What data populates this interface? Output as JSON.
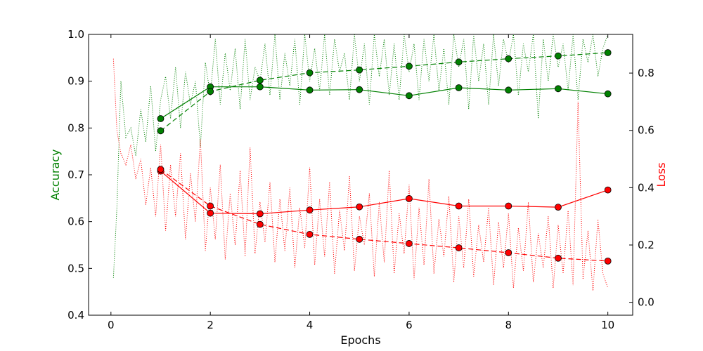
{
  "chart_data": {
    "type": "line",
    "title": "",
    "xlabel": "Epochs",
    "ylabel_left": "Accuracy",
    "ylabel_right": "Loss",
    "xlim": [
      -0.45,
      10.5
    ],
    "ylim_left": [
      0.4,
      1.0
    ],
    "ylim_right": [
      -0.045,
      0.935
    ],
    "x_ticks": [
      0,
      2,
      4,
      6,
      8,
      10
    ],
    "y_left_ticks": [
      0.4,
      0.5,
      0.6,
      0.7,
      0.8,
      0.9,
      1.0
    ],
    "y_right_ticks": [
      0.0,
      0.2,
      0.4,
      0.6,
      0.8
    ],
    "grid": false,
    "legend": "none",
    "colors": {
      "accuracy": "#008000",
      "loss": "#ff0000",
      "axis": "#000000",
      "background": "#ffffff"
    },
    "series": [
      {
        "axis": "left",
        "color": "#008000",
        "line": "solid",
        "marker": "circle",
        "x": [
          1,
          2,
          3,
          4,
          5,
          6,
          7,
          8,
          9,
          10
        ],
        "values": [
          0.82,
          0.888,
          0.888,
          0.881,
          0.882,
          0.869,
          0.886,
          0.881,
          0.884,
          0.873
        ]
      },
      {
        "axis": "left",
        "color": "#008000",
        "line": "dashed",
        "marker": "circle",
        "x": [
          1,
          2,
          3,
          4,
          5,
          6,
          7,
          8,
          9,
          10
        ],
        "values": [
          0.794,
          0.878,
          0.902,
          0.918,
          0.924,
          0.932,
          0.941,
          0.948,
          0.954,
          0.961
        ]
      },
      {
        "axis": "right",
        "color": "#ff0000",
        "line": "solid",
        "marker": "circle",
        "x": [
          1,
          2,
          3,
          4,
          5,
          6,
          7,
          8,
          9,
          10
        ],
        "values": [
          0.458,
          0.311,
          0.309,
          0.322,
          0.333,
          0.362,
          0.336,
          0.336,
          0.332,
          0.392
        ]
      },
      {
        "axis": "right",
        "color": "#ff0000",
        "line": "dashed",
        "marker": "circle",
        "x": [
          1,
          2,
          3,
          4,
          5,
          6,
          7,
          8,
          9,
          10
        ],
        "values": [
          0.464,
          0.336,
          0.272,
          0.237,
          0.22,
          0.205,
          0.19,
          0.173,
          0.154,
          0.144
        ]
      },
      {
        "axis": "left",
        "color": "#008000",
        "line": "dotted",
        "marker": "none",
        "x": [
          0.05,
          0.12,
          0.2,
          0.3,
          0.4,
          0.5,
          0.6,
          0.7,
          0.8,
          0.9,
          1.0,
          1.1,
          1.2,
          1.3,
          1.4,
          1.5,
          1.6,
          1.7,
          1.8,
          1.9,
          2.0,
          2.1,
          2.2,
          2.3,
          2.4,
          2.5,
          2.6,
          2.7,
          2.8,
          2.9,
          3.0,
          3.1,
          3.2,
          3.3,
          3.4,
          3.5,
          3.6,
          3.7,
          3.8,
          3.9,
          4.0,
          4.1,
          4.2,
          4.3,
          4.4,
          4.5,
          4.6,
          4.7,
          4.8,
          4.9,
          5.0,
          5.1,
          5.2,
          5.3,
          5.4,
          5.5,
          5.6,
          5.7,
          5.8,
          5.9,
          6.0,
          6.1,
          6.2,
          6.3,
          6.4,
          6.5,
          6.6,
          6.7,
          6.8,
          6.9,
          7.0,
          7.1,
          7.2,
          7.3,
          7.4,
          7.5,
          7.6,
          7.7,
          7.8,
          7.9,
          8.0,
          8.1,
          8.2,
          8.3,
          8.4,
          8.5,
          8.6,
          8.7,
          8.8,
          8.9,
          9.0,
          9.1,
          9.2,
          9.3,
          9.4,
          9.5,
          9.6,
          9.7,
          9.8,
          9.9,
          10.0
        ],
        "values": [
          0.48,
          0.63,
          0.9,
          0.78,
          0.8,
          0.74,
          0.84,
          0.77,
          0.89,
          0.75,
          0.86,
          0.91,
          0.82,
          0.93,
          0.8,
          0.92,
          0.85,
          0.9,
          0.76,
          0.94,
          0.87,
          0.99,
          0.85,
          0.96,
          0.88,
          0.97,
          0.84,
          0.99,
          0.86,
          0.93,
          0.9,
          0.98,
          0.87,
          1.0,
          0.86,
          0.96,
          0.89,
          0.99,
          0.85,
          1.0,
          0.9,
          0.97,
          0.88,
          1.0,
          0.87,
          0.99,
          0.92,
          0.96,
          0.86,
          1.0,
          0.9,
          0.98,
          0.85,
          1.0,
          0.91,
          0.99,
          0.87,
          0.98,
          0.86,
          1.0,
          0.92,
          0.98,
          0.86,
          0.99,
          0.9,
          1.0,
          0.88,
          0.97,
          0.85,
          1.0,
          0.93,
          0.99,
          0.84,
          1.0,
          0.9,
          0.98,
          0.85,
          1.0,
          0.89,
          0.99,
          0.94,
          1.0,
          0.87,
          0.98,
          0.92,
          1.0,
          0.82,
          0.99,
          0.9,
          1.0,
          0.93,
          0.98,
          0.88,
          1.0,
          0.86,
          0.99,
          0.94,
          1.0,
          0.91,
          0.97,
          1.0
        ]
      },
      {
        "axis": "right",
        "color": "#ff0000",
        "line": "dotted",
        "marker": "none",
        "x": [
          0.05,
          0.12,
          0.2,
          0.3,
          0.4,
          0.5,
          0.6,
          0.7,
          0.8,
          0.9,
          1.0,
          1.1,
          1.2,
          1.3,
          1.4,
          1.5,
          1.6,
          1.7,
          1.8,
          1.9,
          2.0,
          2.1,
          2.2,
          2.3,
          2.4,
          2.5,
          2.6,
          2.7,
          2.8,
          2.9,
          3.0,
          3.1,
          3.2,
          3.3,
          3.4,
          3.5,
          3.6,
          3.7,
          3.8,
          3.9,
          4.0,
          4.1,
          4.2,
          4.3,
          4.4,
          4.5,
          4.6,
          4.7,
          4.8,
          4.9,
          5.0,
          5.1,
          5.2,
          5.3,
          5.4,
          5.5,
          5.6,
          5.7,
          5.8,
          5.9,
          6.0,
          6.1,
          6.2,
          6.3,
          6.4,
          6.5,
          6.6,
          6.7,
          6.8,
          6.9,
          7.0,
          7.1,
          7.2,
          7.3,
          7.4,
          7.5,
          7.6,
          7.7,
          7.8,
          7.9,
          8.0,
          8.1,
          8.2,
          8.3,
          8.4,
          8.5,
          8.6,
          8.7,
          8.8,
          8.9,
          9.0,
          9.1,
          9.2,
          9.3,
          9.4,
          9.5,
          9.6,
          9.7,
          9.8,
          9.9,
          10.0
        ],
        "values": [
          0.85,
          0.6,
          0.52,
          0.48,
          0.55,
          0.43,
          0.5,
          0.34,
          0.47,
          0.3,
          0.55,
          0.25,
          0.48,
          0.3,
          0.52,
          0.22,
          0.45,
          0.28,
          0.57,
          0.18,
          0.4,
          0.22,
          0.48,
          0.15,
          0.38,
          0.2,
          0.46,
          0.16,
          0.54,
          0.17,
          0.35,
          0.21,
          0.42,
          0.14,
          0.36,
          0.18,
          0.4,
          0.12,
          0.33,
          0.19,
          0.47,
          0.13,
          0.36,
          0.16,
          0.42,
          0.1,
          0.32,
          0.18,
          0.44,
          0.11,
          0.3,
          0.2,
          0.38,
          0.09,
          0.35,
          0.14,
          0.46,
          0.1,
          0.31,
          0.17,
          0.41,
          0.08,
          0.33,
          0.13,
          0.43,
          0.1,
          0.29,
          0.16,
          0.37,
          0.07,
          0.3,
          0.12,
          0.36,
          0.09,
          0.27,
          0.14,
          0.33,
          0.06,
          0.28,
          0.12,
          0.31,
          0.05,
          0.26,
          0.11,
          0.35,
          0.07,
          0.24,
          0.12,
          0.3,
          0.05,
          0.27,
          0.1,
          0.32,
          0.06,
          0.7,
          0.08,
          0.25,
          0.04,
          0.29,
          0.1,
          0.05
        ]
      }
    ]
  }
}
